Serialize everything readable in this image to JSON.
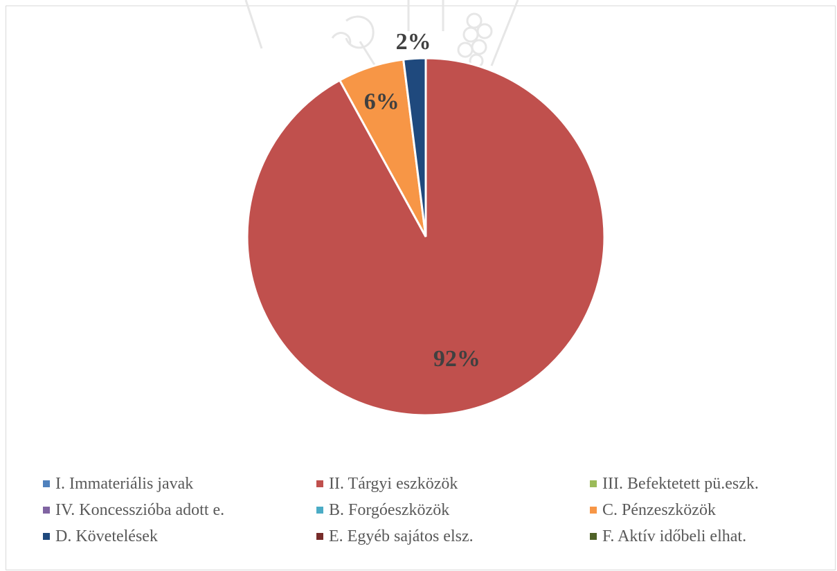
{
  "chart_data": {
    "type": "pie",
    "slices": [
      {
        "label": "I. Immateriális javak",
        "value": 0,
        "color": "#4f81bd"
      },
      {
        "label": "II. Tárgyi eszközök",
        "value": 92,
        "color": "#c0504d"
      },
      {
        "label": "III. Befektetett pü.eszk.",
        "value": 0,
        "color": "#9bbb59"
      },
      {
        "label": "IV. Koncesszióba adott e.",
        "value": 0,
        "color": "#8064a2"
      },
      {
        "label": "B. Forgóeszközök",
        "value": 0,
        "color": "#4bacc6"
      },
      {
        "label": "C. Pénzeszközök",
        "value": 6,
        "color": "#f79646"
      },
      {
        "label": "D. Követelések",
        "value": 2,
        "color": "#1f497d"
      },
      {
        "label": "E. Egyéb sajátos elsz.",
        "value": 0,
        "color": "#772c2a"
      },
      {
        "label": "F. Aktív időbeli elhat.",
        "value": 0,
        "color": "#4f6228"
      }
    ],
    "data_labels": [
      {
        "slice": "II. Tárgyi eszközök",
        "text": "92%"
      },
      {
        "slice": "C. Pénzeszközök",
        "text": "6%"
      },
      {
        "slice": "D. Követelések",
        "text": "2%"
      }
    ],
    "legend_position": "bottom"
  }
}
